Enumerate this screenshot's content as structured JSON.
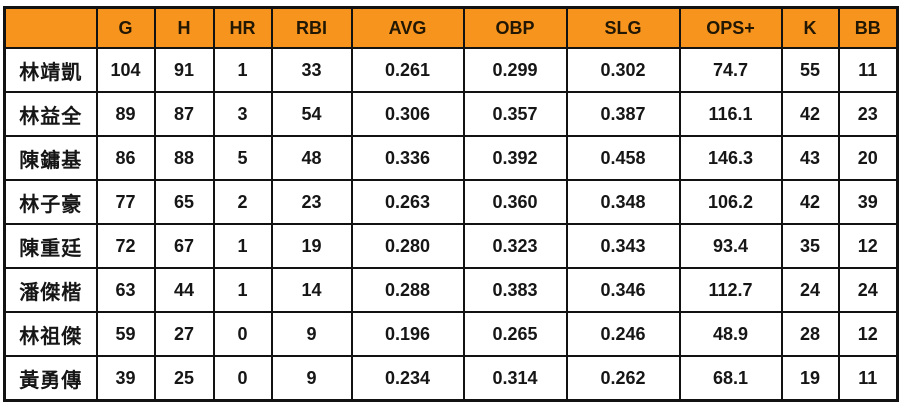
{
  "page": {
    "background": "#ffffff"
  },
  "chart_data": {
    "type": "table",
    "columns": [
      "",
      "G",
      "H",
      "HR",
      "RBI",
      "AVG",
      "OBP",
      "SLG",
      "OPS+",
      "K",
      "BB"
    ],
    "rows": [
      {
        "player": "林靖凱",
        "values": [
          "104",
          "91",
          "1",
          "33",
          "0.261",
          "0.299",
          "0.302",
          "74.7",
          "55",
          "11"
        ]
      },
      {
        "player": "林益全",
        "values": [
          "89",
          "87",
          "3",
          "54",
          "0.306",
          "0.357",
          "0.387",
          "116.1",
          "42",
          "23"
        ]
      },
      {
        "player": "陳鏞基",
        "values": [
          "86",
          "88",
          "5",
          "48",
          "0.336",
          "0.392",
          "0.458",
          "146.3",
          "43",
          "20"
        ]
      },
      {
        "player": "林子豪",
        "values": [
          "77",
          "65",
          "2",
          "23",
          "0.263",
          "0.360",
          "0.348",
          "106.2",
          "42",
          "39"
        ]
      },
      {
        "player": "陳重廷",
        "values": [
          "72",
          "67",
          "1",
          "19",
          "0.280",
          "0.323",
          "0.343",
          "93.4",
          "35",
          "12"
        ]
      },
      {
        "player": "潘傑楷",
        "values": [
          "63",
          "44",
          "1",
          "14",
          "0.288",
          "0.383",
          "0.346",
          "112.7",
          "24",
          "24"
        ]
      },
      {
        "player": "林祖傑",
        "values": [
          "59",
          "27",
          "0",
          "9",
          "0.196",
          "0.265",
          "0.246",
          "48.9",
          "28",
          "12"
        ]
      },
      {
        "player": "黃勇傳",
        "values": [
          "39",
          "25",
          "0",
          "9",
          "0.234",
          "0.314",
          "0.262",
          "68.1",
          "19",
          "11"
        ]
      }
    ],
    "layout": {
      "header_bg": "#F7941E",
      "header_text_color": "#211703",
      "body_text_color": "#161616",
      "border_color": "#121212",
      "grid": true,
      "legend": "none"
    }
  }
}
